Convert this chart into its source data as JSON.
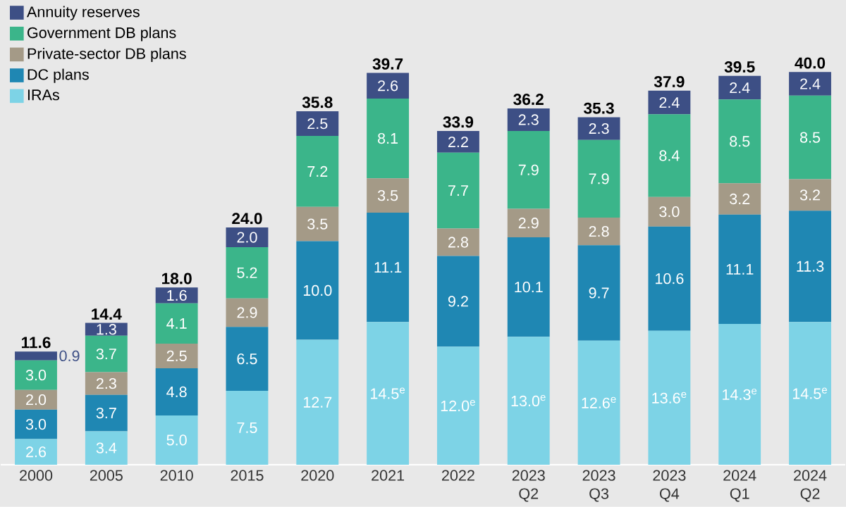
{
  "chart_data": {
    "type": "bar",
    "stacked": true,
    "legend": "top left",
    "categories": [
      "2000",
      "2005",
      "2010",
      "2015",
      "2020",
      "2021",
      "2022",
      "2023 Q2",
      "2023 Q3",
      "2023 Q4",
      "2024 Q1",
      "2024 Q2"
    ],
    "series": [
      {
        "name": "IRAs",
        "color": "#7dd3e6",
        "values": [
          2.6,
          3.4,
          5.0,
          7.5,
          12.7,
          14.5,
          12.0,
          13.0,
          12.6,
          13.6,
          14.3,
          14.5
        ],
        "value_labels": [
          "2.6",
          "3.4",
          "5.0",
          "7.5",
          "12.7",
          "14.5$^{e}$",
          "12.0$^{e}$",
          "13.0$^{e}$",
          "12.6$^{e}$",
          "13.6$^{e}$",
          "14.3$^{e}$",
          "14.5$^{e}$"
        ]
      },
      {
        "name": "DC plans",
        "color": "#1f87b3",
        "values": [
          3.0,
          3.7,
          4.8,
          6.5,
          10.0,
          11.1,
          9.2,
          10.1,
          9.7,
          10.6,
          11.1,
          11.3
        ],
        "value_labels": [
          "3.0",
          "3.7",
          "4.8",
          "6.5",
          "10.0",
          "11.1",
          "9.2",
          "10.1",
          "9.7",
          "10.6",
          "11.1",
          "11.3"
        ]
      },
      {
        "name": "Private-sector DB plans",
        "color": "#a49a87",
        "values": [
          2.0,
          2.3,
          2.5,
          2.9,
          3.5,
          3.5,
          2.8,
          2.9,
          2.8,
          3.0,
          3.2,
          3.2
        ],
        "value_labels": [
          "2.0",
          "2.3",
          "2.5",
          "2.9",
          "3.5",
          "3.5",
          "2.8",
          "2.9",
          "2.8",
          "3.0",
          "3.2",
          "3.2"
        ]
      },
      {
        "name": "Government DB plans",
        "color": "#3bb58a",
        "values": [
          3.0,
          3.7,
          4.1,
          5.2,
          7.2,
          8.1,
          7.7,
          7.9,
          7.9,
          8.4,
          8.5,
          8.5
        ],
        "value_labels": [
          "3.0",
          "3.7",
          "4.1",
          "5.2",
          "7.2",
          "8.1",
          "7.7",
          "7.9",
          "7.9",
          "8.4",
          "8.5",
          "8.5"
        ]
      },
      {
        "name": "Annuity reserves",
        "color": "#3d4f85",
        "values": [
          0.9,
          1.3,
          1.6,
          2.0,
          2.5,
          2.6,
          2.2,
          2.3,
          2.3,
          2.4,
          2.4,
          2.4
        ],
        "value_labels": [
          "0.9",
          "1.3",
          "1.6",
          "2.0",
          "2.5",
          "2.6",
          "2.2",
          "2.3",
          "2.3",
          "2.4",
          "2.4",
          "2.4"
        ]
      }
    ],
    "totals": [
      "11.6",
      "14.4",
      "18.0",
      "24.0",
      "35.8",
      "39.7",
      "33.9",
      "36.2",
      "35.3",
      "37.9",
      "39.5",
      "40.0"
    ]
  }
}
